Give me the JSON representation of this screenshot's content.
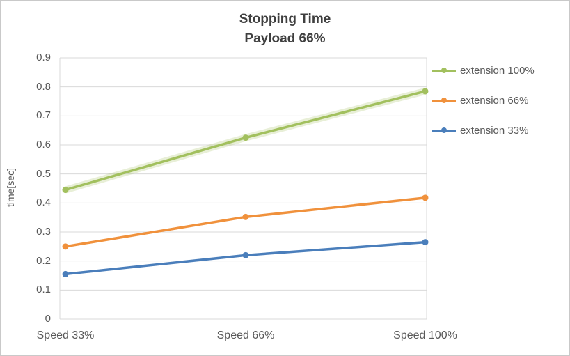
{
  "chart": {
    "title_line1": "Stopping Time",
    "title_line2": "Payload 66%",
    "ylabel": "time[sec]"
  },
  "chart_data": {
    "type": "line",
    "title": "Stopping Time Payload 66%",
    "categories": [
      "Speed 33%",
      "Speed 66%",
      "Speed 100%"
    ],
    "series": [
      {
        "name": "extension 100%",
        "color": "#A2C05E",
        "glow": true,
        "values": [
          0.445,
          0.625,
          0.785
        ]
      },
      {
        "name": "extension 66%",
        "color": "#F0913C",
        "glow": false,
        "values": [
          0.25,
          0.352,
          0.418
        ]
      },
      {
        "name": "extension 33%",
        "color": "#4A7EBB",
        "glow": false,
        "values": [
          0.155,
          0.22,
          0.265
        ]
      }
    ],
    "ylabel": "time[sec]",
    "ylim": [
      0,
      0.9
    ],
    "ytick_step": 0.1,
    "grid": true,
    "gridline_color": "#d9d9d9",
    "legend_position": "right"
  }
}
